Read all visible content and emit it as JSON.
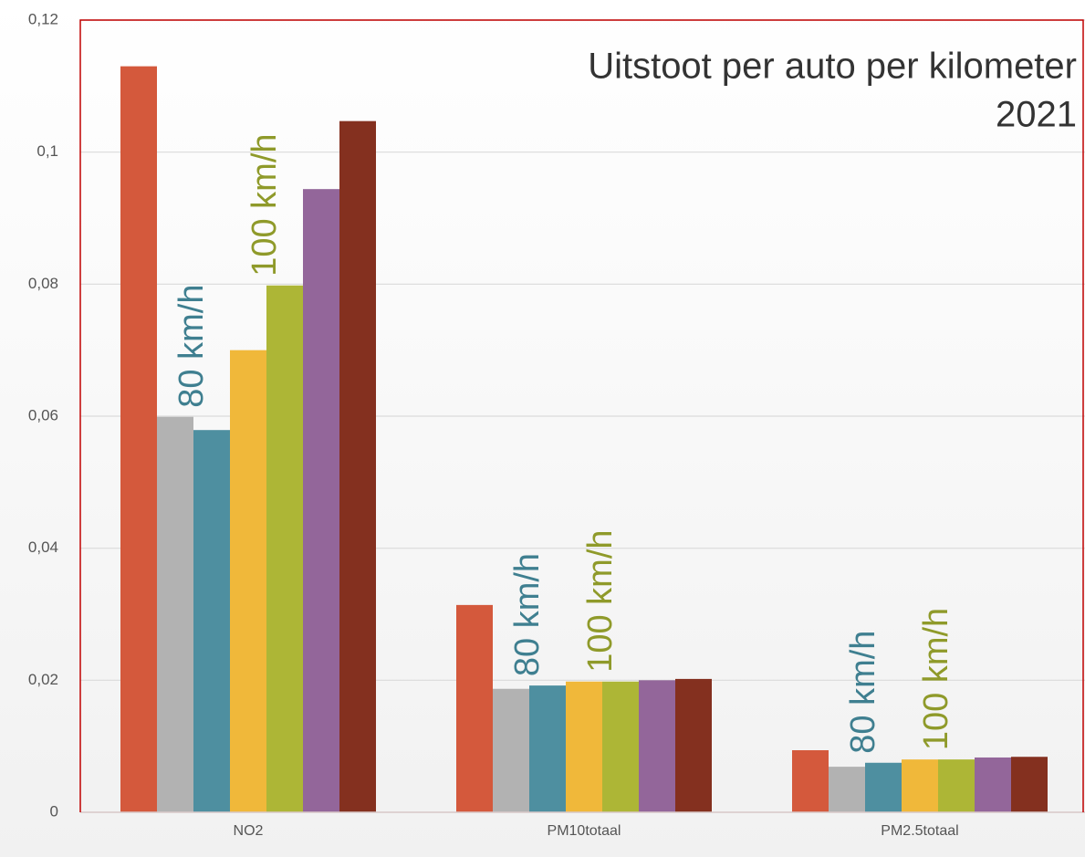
{
  "chart_data": {
    "type": "bar",
    "title": "Uitstoot per auto per kilometer",
    "subtitle": "2021",
    "categories": [
      "NO2",
      "PM10totaal",
      "PM2.5totaal"
    ],
    "series": [
      {
        "color": "#d4593c",
        "values": [
          0.113,
          0.0314,
          0.0094
        ]
      },
      {
        "color": "#b2b2b2",
        "values": [
          0.0599,
          0.0187,
          0.0069
        ]
      },
      {
        "color": "#4e8fa0",
        "values": [
          0.0579,
          0.0192,
          0.0075
        ]
      },
      {
        "color": "#f0b83a",
        "values": [
          0.07,
          0.0198,
          0.008
        ]
      },
      {
        "color": "#adb636",
        "values": [
          0.0798,
          0.0198,
          0.008
        ]
      },
      {
        "color": "#93669a",
        "values": [
          0.0944,
          0.02,
          0.0083
        ]
      },
      {
        "color": "#84301f",
        "values": [
          0.1047,
          0.0202,
          0.0084
        ]
      }
    ],
    "annotations": [
      {
        "text": "80 km/h",
        "color": "#3f7f90"
      },
      {
        "text": "100 km/h",
        "color": "#8f9a2a"
      }
    ],
    "ylim": [
      0,
      0.12
    ],
    "yticks": [
      0,
      {
        "value": 0.02,
        "label": "0,02"
      },
      {
        "value": 0.04,
        "label": "0,04"
      },
      {
        "value": 0.06,
        "label": "0,06"
      },
      {
        "value": 0.08,
        "label": "0,08"
      },
      {
        "value": 0.1,
        "label": "0,1"
      },
      {
        "value": 0.12,
        "label": "0,12"
      }
    ],
    "grid": true
  }
}
